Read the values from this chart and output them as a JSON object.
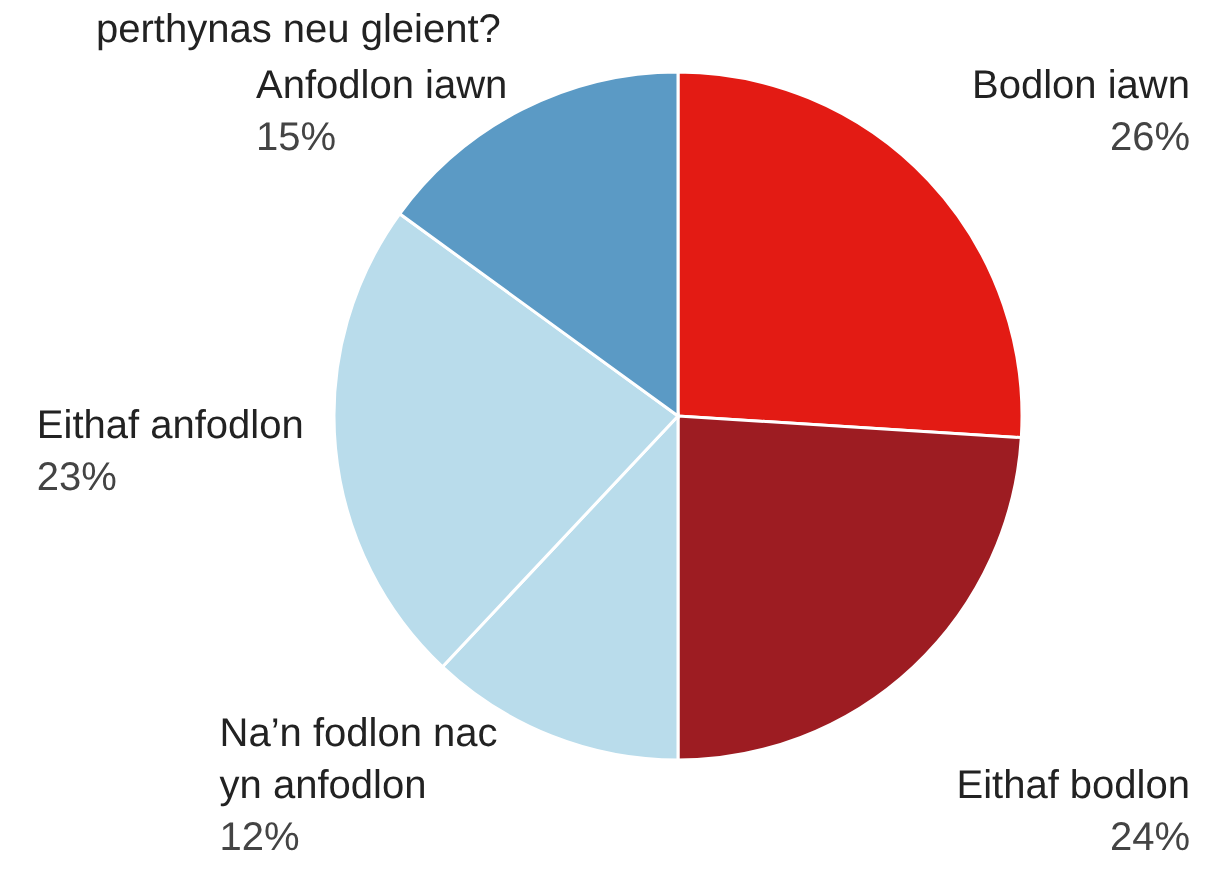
{
  "chart_data": {
    "type": "pie",
    "title": "perthynas neu gleient?",
    "categories": [
      "Bodlon iawn",
      "Eithaf bodlon",
      "Na’n fodlon nac yn anfodlon",
      "Eithaf anfodlon",
      "Anfodlon iawn"
    ],
    "values": [
      26,
      24,
      12,
      23,
      15
    ],
    "colors": [
      "#e31b14",
      "#9d1c22",
      "#b9dceb",
      "#b9dceb",
      "#5b9ac5"
    ],
    "value_labels": [
      "26%",
      "24%",
      "12%",
      "23%",
      "15%"
    ]
  }
}
